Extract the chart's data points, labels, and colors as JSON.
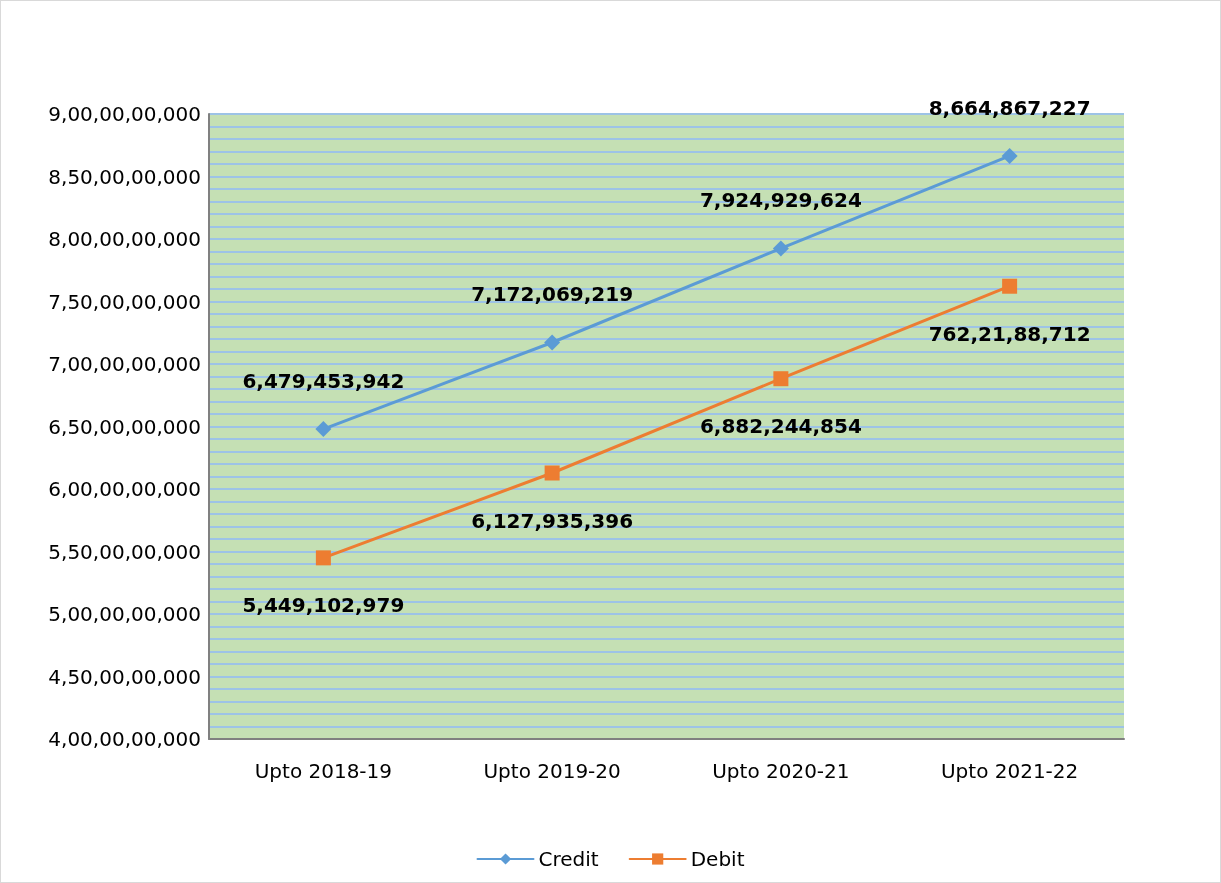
{
  "chart_data": {
    "type": "line",
    "categories": [
      "Upto 2018-19",
      "Upto 2019-20",
      "Upto 2020-21",
      "Upto 2021-22"
    ],
    "series": [
      {
        "name": "Credit",
        "color": "#5b9bd5",
        "marker": "diamond",
        "values": [
          6479453942,
          7172069219,
          7924929624,
          8664867227
        ],
        "value_labels": [
          "6,479,453,942",
          "7,172,069,219",
          "7,924,929,624",
          "8,664,867,227"
        ]
      },
      {
        "name": "Debit",
        "color": "#ed7d31",
        "marker": "square",
        "values": [
          5449102979,
          6127935396,
          6882244854,
          7622188712
        ],
        "value_labels": [
          "5,449,102,979",
          "6,127,935,396",
          "6,882,244,854",
          "762,21,88,712"
        ]
      }
    ],
    "ylim": [
      4000000000,
      9000000000
    ],
    "yticks": [
      {
        "value": 4000000000,
        "label": "4,00,00,00,000"
      },
      {
        "value": 4500000000,
        "label": "4,50,00,00,000"
      },
      {
        "value": 5000000000,
        "label": "5,00,00,00,000"
      },
      {
        "value": 5500000000,
        "label": "5,50,00,00,000"
      },
      {
        "value": 6000000000,
        "label": "6,00,00,00,000"
      },
      {
        "value": 6500000000,
        "label": "6,50,00,00,000"
      },
      {
        "value": 7000000000,
        "label": "7,00,00,00,000"
      },
      {
        "value": 7500000000,
        "label": "7,50,00,00,000"
      },
      {
        "value": 8000000000,
        "label": "8,00,00,00,000"
      },
      {
        "value": 8500000000,
        "label": "8,50,00,00,000"
      },
      {
        "value": 9000000000,
        "label": "9,00,00,00,000"
      }
    ],
    "grid": "y",
    "legend": "bottom",
    "line_style": "solid"
  }
}
